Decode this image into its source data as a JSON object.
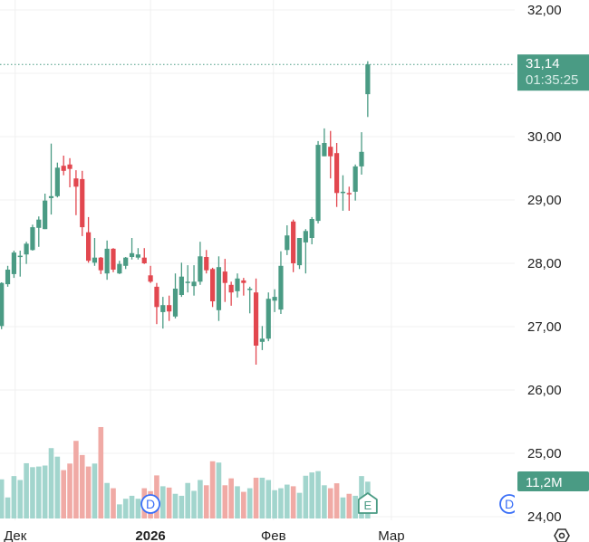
{
  "chart_data": {
    "type": "candlestick",
    "title": "",
    "y_ticks": [
      "24,00",
      "25,00",
      "26,00",
      "27,00",
      "28,00",
      "29,00",
      "30,00",
      "31,00",
      "32,00"
    ],
    "y_tick_values": [
      24,
      25,
      26,
      27,
      28,
      29,
      30,
      31,
      32
    ],
    "ylim": [
      24,
      32.15
    ],
    "x_labels": [
      {
        "text": "Дек",
        "index": 2.2,
        "bold": false
      },
      {
        "text": "2026",
        "index": 24,
        "bold": true
      },
      {
        "text": "Фев",
        "index": 43.8,
        "bold": false
      },
      {
        "text": "Мар",
        "index": 62.8,
        "bold": false
      }
    ],
    "grid": true,
    "current_price": {
      "value": 31.14,
      "label": "31,14",
      "countdown": "01:35:25"
    },
    "current_volume": {
      "label": "11,2M",
      "value": 11.2
    },
    "volume_unit": "M",
    "markers": [
      {
        "type": "D",
        "index": 24
      },
      {
        "type": "E",
        "index": 59
      },
      {
        "type": "D",
        "index": 81.8
      }
    ],
    "candles": [
      [
        27.01,
        27.7,
        26.96,
        27.69
      ],
      [
        27.67,
        27.96,
        27.63,
        27.9
      ],
      [
        27.83,
        28.2,
        27.77,
        28.17
      ],
      [
        28.1,
        28.2,
        27.79,
        28.12
      ],
      [
        28.14,
        28.34,
        27.99,
        28.31
      ],
      [
        28.21,
        28.61,
        28.2,
        28.57
      ],
      [
        28.56,
        28.74,
        28.26,
        28.69
      ],
      [
        28.54,
        29.1,
        28.54,
        28.99
      ],
      [
        29.03,
        29.89,
        28.77,
        29.06
      ],
      [
        29.06,
        29.59,
        29.04,
        29.51
      ],
      [
        29.54,
        29.7,
        29.39,
        29.46
      ],
      [
        29.56,
        29.66,
        29.2,
        29.49
      ],
      [
        29.34,
        29.47,
        28.76,
        29.21
      ],
      [
        29.33,
        29.46,
        28.43,
        28.57
      ],
      [
        28.49,
        28.73,
        28.01,
        28.04
      ],
      [
        28.01,
        28.4,
        27.96,
        28.09
      ],
      [
        28.09,
        28.1,
        27.83,
        27.89
      ],
      [
        27.84,
        28.36,
        27.74,
        28.23
      ],
      [
        28.23,
        28.24,
        27.86,
        27.9
      ],
      [
        27.84,
        28.04,
        27.83,
        27.99
      ],
      [
        27.96,
        28.1,
        27.91,
        28.09
      ],
      [
        28.1,
        28.4,
        28.06,
        28.16
      ],
      [
        28.09,
        28.24,
        28.06,
        28.14
      ],
      [
        28.09,
        28.24,
        27.99,
        28.0
      ],
      [
        27.81,
        27.96,
        27.69,
        27.71
      ],
      [
        27.63,
        27.69,
        27.04,
        27.31
      ],
      [
        27.23,
        27.47,
        26.97,
        27.34
      ],
      [
        27.34,
        27.49,
        27.09,
        27.24
      ],
      [
        27.16,
        27.84,
        27.13,
        27.6
      ],
      [
        27.5,
        28.01,
        27.47,
        27.79
      ],
      [
        27.7,
        27.97,
        27.54,
        27.71
      ],
      [
        27.64,
        27.97,
        27.49,
        27.71
      ],
      [
        27.71,
        28.34,
        27.66,
        28.11
      ],
      [
        28.1,
        28.21,
        27.84,
        27.89
      ],
      [
        27.91,
        27.93,
        27.31,
        27.4
      ],
      [
        27.26,
        28.11,
        27.09,
        27.94
      ],
      [
        27.87,
        28.07,
        27.39,
        27.69
      ],
      [
        27.66,
        27.71,
        27.33,
        27.54
      ],
      [
        27.56,
        27.84,
        27.46,
        27.76
      ],
      [
        27.73,
        27.77,
        27.49,
        27.69
      ],
      [
        27.59,
        27.63,
        27.21,
        27.6
      ],
      [
        27.54,
        27.76,
        26.4,
        26.7
      ],
      [
        26.76,
        27.01,
        26.63,
        26.81
      ],
      [
        26.81,
        27.54,
        26.77,
        27.44
      ],
      [
        27.41,
        27.59,
        27.23,
        27.47
      ],
      [
        27.27,
        28.19,
        27.2,
        27.96
      ],
      [
        28.21,
        28.6,
        28.13,
        28.44
      ],
      [
        28.66,
        28.69,
        27.86,
        28.0
      ],
      [
        27.97,
        28.4,
        27.91,
        28.4
      ],
      [
        28.33,
        28.54,
        27.84,
        28.51
      ],
      [
        28.4,
        28.73,
        28.3,
        28.7
      ],
      [
        28.67,
        29.93,
        28.63,
        29.87
      ],
      [
        29.69,
        30.13,
        29.69,
        29.9
      ],
      [
        29.84,
        30.09,
        29.34,
        29.69
      ],
      [
        29.74,
        29.9,
        28.89,
        29.11
      ],
      [
        29.11,
        29.39,
        28.83,
        29.13
      ],
      [
        29.11,
        29.21,
        28.83,
        29.1
      ],
      [
        29.13,
        29.56,
        28.99,
        29.53
      ],
      [
        29.53,
        30.07,
        29.4,
        29.76
      ],
      [
        30.67,
        31.19,
        30.31,
        31.14
      ]
    ],
    "candle_fields": [
      "open",
      "high",
      "low",
      "close"
    ],
    "volumes": [
      11.9,
      6.4,
      12.9,
      11.7,
      16.8,
      15.6,
      15.8,
      16.1,
      21.4,
      18.8,
      14.7,
      16.7,
      23.6,
      19.3,
      15.8,
      16.7,
      27.8,
      10.8,
      9.2,
      4.3,
      6.0,
      6.9,
      6.0,
      9.2,
      8.3,
      13.1,
      9.8,
      9.4,
      7.5,
      6.9,
      10.8,
      8.4,
      11.7,
      10.1,
      17.4,
      17.0,
      10.1,
      12.2,
      9.8,
      8.1,
      9.2,
      12.4,
      12.4,
      11.7,
      8.6,
      9.2,
      10.3,
      9.8,
      7.8,
      13.0,
      14.0,
      14.4,
      10.1,
      9.2,
      10.7,
      6.4,
      7.5,
      6.9,
      12.9,
      11.2
    ]
  },
  "colors": {
    "up": "#4a9b84",
    "down": "#e2474f",
    "volume_up": "#a2d5cd",
    "volume_down": "#f0aaa5",
    "marker_d": "#3a6ff7",
    "grid": "#f0f0f0"
  },
  "settings_icon": "gear-hexagon-icon"
}
